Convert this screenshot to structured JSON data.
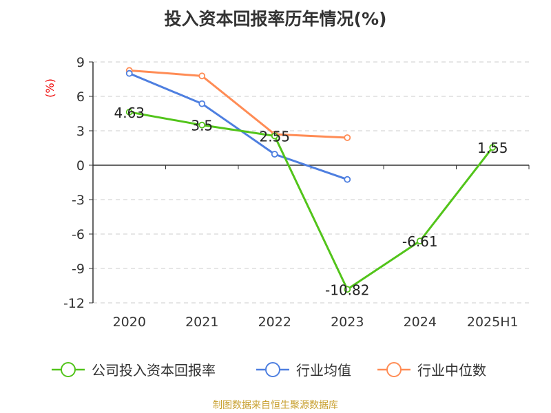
{
  "chart_data": {
    "type": "line",
    "title": "投入资本回报率历年情况(%)",
    "ylabel": "(%)",
    "categories": [
      "2020",
      "2021",
      "2022",
      "2023",
      "2024",
      "2025H1"
    ],
    "ylim": [
      -12,
      9
    ],
    "yticks": [
      9,
      6,
      3,
      0,
      -3,
      -6,
      -9,
      -12
    ],
    "grid": true,
    "legend_position": "bottom",
    "series": [
      {
        "name": "公司投入资本回报率",
        "color": "#52c41a",
        "values": [
          4.63,
          3.5,
          2.55,
          -10.82,
          -6.61,
          1.55
        ],
        "labels": [
          "4.63",
          "3.5",
          "2.55",
          "-10.82",
          "-6.61",
          "1.55"
        ]
      },
      {
        "name": "行业均值",
        "color": "#4e7fe0",
        "values": [
          8.0,
          5.36,
          0.96,
          -1.24,
          null,
          null
        ]
      },
      {
        "name": "行业中位数",
        "color": "#ff8c55",
        "values": [
          8.26,
          7.78,
          2.7,
          2.4,
          null,
          null
        ]
      }
    ]
  },
  "source": "制图数据来自恒生聚源数据库"
}
